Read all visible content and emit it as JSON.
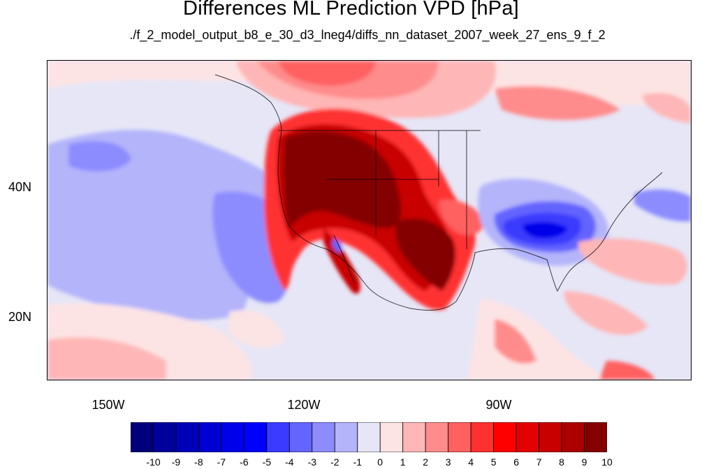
{
  "title": "Differences ML Prediction VPD [hPa]",
  "subtitle": "./f_2_model_output_b8_e_30_d3_lneg4/diffs_nn_dataset_2007_week_27_ens_9_f_2",
  "map": {
    "projection": "cylindrical-equidistant",
    "lon_range": [
      -160,
      -62
    ],
    "lat_range": [
      11,
      60
    ],
    "lat_ticks": [
      "40N",
      "20N"
    ],
    "lon_ticks": [
      "150W",
      "120W",
      "90W"
    ]
  },
  "colorbar": {
    "min": -10,
    "max": 10,
    "step": 1,
    "labels": [
      "-10",
      "-9",
      "-8",
      "-7",
      "-6",
      "-5",
      "-4",
      "-3",
      "-2",
      "-1",
      "0",
      "1",
      "2",
      "3",
      "4",
      "5",
      "6",
      "7",
      "8",
      "9",
      "10"
    ],
    "colors": [
      "#00007a",
      "#00009a",
      "#0000b8",
      "#0000d3",
      "#0000ea",
      "#0000ff",
      "#3b3bff",
      "#6464ff",
      "#8c8cff",
      "#b4b4fb",
      "#e6e6f7",
      "#fde4e4",
      "#ffb6b6",
      "#ff8c8c",
      "#ff6060",
      "#ff3030",
      "#ff0000",
      "#e20000",
      "#c80000",
      "#aa0000",
      "#840000"
    ]
  }
}
